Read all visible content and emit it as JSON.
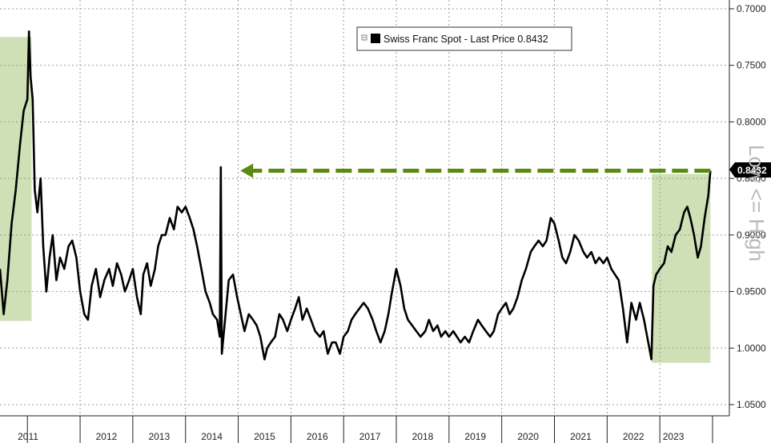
{
  "chart_data": {
    "type": "line",
    "title": "",
    "xlabel": "",
    "ylabel": "",
    "x_ticks": [
      "2011",
      "2012",
      "2013",
      "2014",
      "2015",
      "2016",
      "2017",
      "2018",
      "2019",
      "2020",
      "2021",
      "2022",
      "2023"
    ],
    "xlim": [
      2010.48,
      2023.97
    ],
    "y_ticks": [
      "0.7000",
      "0.7500",
      "0.8000",
      "0.8500",
      "0.9000",
      "0.9500",
      "1.0000",
      "1.0500"
    ],
    "ylim": [
      0.7,
      1.05
    ],
    "y_inverted": true,
    "grid": true,
    "legend": {
      "position": "top-center",
      "text": "Swiss Franc Spot - Last Price 0.8432"
    },
    "side_annotation": "Low <= High",
    "last_value_label": "0.8432",
    "highlight_color": "#cfe0b6",
    "line_color": "#000000",
    "arrow_color": "#5a8a12",
    "highlight_ranges": [
      {
        "x0": 2010.48,
        "x1": 2011.08,
        "y0": 0.725,
        "y1": 0.976
      },
      {
        "x0": 2022.85,
        "x1": 2023.96,
        "y0": 0.846,
        "y1": 1.013
      }
    ],
    "arrow": {
      "x_start": 2023.96,
      "x_end": 2015.04,
      "y": 0.8432
    },
    "series": [
      {
        "name": "Swiss Franc Spot",
        "points": [
          [
            2010.48,
            0.93
          ],
          [
            2010.55,
            0.97
          ],
          [
            2010.62,
            0.94
          ],
          [
            2010.7,
            0.89
          ],
          [
            2010.78,
            0.86
          ],
          [
            2010.86,
            0.82
          ],
          [
            2010.93,
            0.79
          ],
          [
            2011.0,
            0.78
          ],
          [
            2011.03,
            0.72
          ],
          [
            2011.06,
            0.76
          ],
          [
            2011.1,
            0.78
          ],
          [
            2011.14,
            0.86
          ],
          [
            2011.19,
            0.88
          ],
          [
            2011.25,
            0.85
          ],
          [
            2011.3,
            0.91
          ],
          [
            2011.36,
            0.95
          ],
          [
            2011.42,
            0.92
          ],
          [
            2011.48,
            0.9
          ],
          [
            2011.55,
            0.94
          ],
          [
            2011.62,
            0.92
          ],
          [
            2011.7,
            0.93
          ],
          [
            2011.78,
            0.91
          ],
          [
            2011.85,
            0.905
          ],
          [
            2011.93,
            0.92
          ],
          [
            2012.0,
            0.95
          ],
          [
            2012.08,
            0.97
          ],
          [
            2012.15,
            0.975
          ],
          [
            2012.22,
            0.945
          ],
          [
            2012.3,
            0.93
          ],
          [
            2012.38,
            0.955
          ],
          [
            2012.46,
            0.94
          ],
          [
            2012.55,
            0.93
          ],
          [
            2012.62,
            0.945
          ],
          [
            2012.7,
            0.925
          ],
          [
            2012.78,
            0.935
          ],
          [
            2012.85,
            0.95
          ],
          [
            2012.93,
            0.94
          ],
          [
            2013.0,
            0.93
          ],
          [
            2013.08,
            0.955
          ],
          [
            2013.15,
            0.97
          ],
          [
            2013.2,
            0.935
          ],
          [
            2013.27,
            0.925
          ],
          [
            2013.34,
            0.945
          ],
          [
            2013.42,
            0.93
          ],
          [
            2013.48,
            0.91
          ],
          [
            2013.55,
            0.9
          ],
          [
            2013.62,
            0.9
          ],
          [
            2013.7,
            0.885
          ],
          [
            2013.78,
            0.895
          ],
          [
            2013.85,
            0.875
          ],
          [
            2013.93,
            0.88
          ],
          [
            2014.0,
            0.875
          ],
          [
            2014.08,
            0.885
          ],
          [
            2014.15,
            0.895
          ],
          [
            2014.22,
            0.91
          ],
          [
            2014.3,
            0.93
          ],
          [
            2014.38,
            0.95
          ],
          [
            2014.46,
            0.96
          ],
          [
            2014.52,
            0.97
          ],
          [
            2014.6,
            0.975
          ],
          [
            2014.65,
            0.99
          ],
          [
            2014.67,
            0.84
          ],
          [
            2014.69,
            1.005
          ],
          [
            2014.75,
            0.975
          ],
          [
            2014.82,
            0.94
          ],
          [
            2014.9,
            0.935
          ],
          [
            2014.98,
            0.955
          ],
          [
            2015.05,
            0.97
          ],
          [
            2015.12,
            0.985
          ],
          [
            2015.2,
            0.97
          ],
          [
            2015.28,
            0.975
          ],
          [
            2015.35,
            0.98
          ],
          [
            2015.42,
            0.99
          ],
          [
            2015.5,
            1.01
          ],
          [
            2015.55,
            1.0
          ],
          [
            2015.62,
            0.995
          ],
          [
            2015.7,
            0.99
          ],
          [
            2015.78,
            0.97
          ],
          [
            2015.85,
            0.975
          ],
          [
            2015.93,
            0.985
          ],
          [
            2016.0,
            0.975
          ],
          [
            2016.08,
            0.965
          ],
          [
            2016.15,
            0.955
          ],
          [
            2016.22,
            0.975
          ],
          [
            2016.3,
            0.965
          ],
          [
            2016.38,
            0.975
          ],
          [
            2016.46,
            0.985
          ],
          [
            2016.55,
            0.99
          ],
          [
            2016.62,
            0.985
          ],
          [
            2016.7,
            1.005
          ],
          [
            2016.78,
            0.995
          ],
          [
            2016.85,
            0.995
          ],
          [
            2016.93,
            1.005
          ],
          [
            2017.0,
            0.99
          ],
          [
            2017.08,
            0.985
          ],
          [
            2017.15,
            0.975
          ],
          [
            2017.22,
            0.97
          ],
          [
            2017.3,
            0.965
          ],
          [
            2017.38,
            0.96
          ],
          [
            2017.46,
            0.965
          ],
          [
            2017.55,
            0.975
          ],
          [
            2017.62,
            0.985
          ],
          [
            2017.7,
            0.995
          ],
          [
            2017.78,
            0.985
          ],
          [
            2017.85,
            0.97
          ],
          [
            2017.92,
            0.95
          ],
          [
            2018.0,
            0.93
          ],
          [
            2018.08,
            0.945
          ],
          [
            2018.15,
            0.965
          ],
          [
            2018.22,
            0.975
          ],
          [
            2018.3,
            0.98
          ],
          [
            2018.38,
            0.985
          ],
          [
            2018.46,
            0.99
          ],
          [
            2018.55,
            0.985
          ],
          [
            2018.62,
            0.975
          ],
          [
            2018.7,
            0.985
          ],
          [
            2018.78,
            0.98
          ],
          [
            2018.85,
            0.99
          ],
          [
            2018.93,
            0.985
          ],
          [
            2019.0,
            0.99
          ],
          [
            2019.08,
            0.985
          ],
          [
            2019.15,
            0.99
          ],
          [
            2019.22,
            0.995
          ],
          [
            2019.3,
            0.99
          ],
          [
            2019.38,
            0.995
          ],
          [
            2019.46,
            0.985
          ],
          [
            2019.55,
            0.975
          ],
          [
            2019.62,
            0.98
          ],
          [
            2019.7,
            0.985
          ],
          [
            2019.78,
            0.99
          ],
          [
            2019.85,
            0.985
          ],
          [
            2019.93,
            0.97
          ],
          [
            2020.0,
            0.965
          ],
          [
            2020.08,
            0.96
          ],
          [
            2020.15,
            0.97
          ],
          [
            2020.22,
            0.965
          ],
          [
            2020.3,
            0.955
          ],
          [
            2020.38,
            0.94
          ],
          [
            2020.46,
            0.93
          ],
          [
            2020.55,
            0.915
          ],
          [
            2020.62,
            0.91
          ],
          [
            2020.7,
            0.905
          ],
          [
            2020.78,
            0.91
          ],
          [
            2020.85,
            0.905
          ],
          [
            2020.93,
            0.885
          ],
          [
            2021.0,
            0.89
          ],
          [
            2021.08,
            0.905
          ],
          [
            2021.15,
            0.92
          ],
          [
            2021.22,
            0.925
          ],
          [
            2021.3,
            0.915
          ],
          [
            2021.38,
            0.9
          ],
          [
            2021.46,
            0.905
          ],
          [
            2021.55,
            0.915
          ],
          [
            2021.62,
            0.92
          ],
          [
            2021.7,
            0.915
          ],
          [
            2021.78,
            0.925
          ],
          [
            2021.85,
            0.92
          ],
          [
            2021.93,
            0.925
          ],
          [
            2022.0,
            0.92
          ],
          [
            2022.08,
            0.93
          ],
          [
            2022.15,
            0.935
          ],
          [
            2022.22,
            0.94
          ],
          [
            2022.3,
            0.965
          ],
          [
            2022.38,
            0.995
          ],
          [
            2022.46,
            0.96
          ],
          [
            2022.55,
            0.975
          ],
          [
            2022.62,
            0.96
          ],
          [
            2022.7,
            0.975
          ],
          [
            2022.78,
            0.995
          ],
          [
            2022.84,
            1.01
          ],
          [
            2022.88,
            0.945
          ],
          [
            2022.93,
            0.935
          ],
          [
            2023.0,
            0.93
          ],
          [
            2023.08,
            0.925
          ],
          [
            2023.15,
            0.91
          ],
          [
            2023.22,
            0.915
          ],
          [
            2023.3,
            0.9
          ],
          [
            2023.38,
            0.895
          ],
          [
            2023.46,
            0.88
          ],
          [
            2023.52,
            0.875
          ],
          [
            2023.58,
            0.885
          ],
          [
            2023.65,
            0.9
          ],
          [
            2023.72,
            0.92
          ],
          [
            2023.78,
            0.91
          ],
          [
            2023.85,
            0.885
          ],
          [
            2023.92,
            0.865
          ],
          [
            2023.96,
            0.8432
          ]
        ]
      }
    ]
  }
}
